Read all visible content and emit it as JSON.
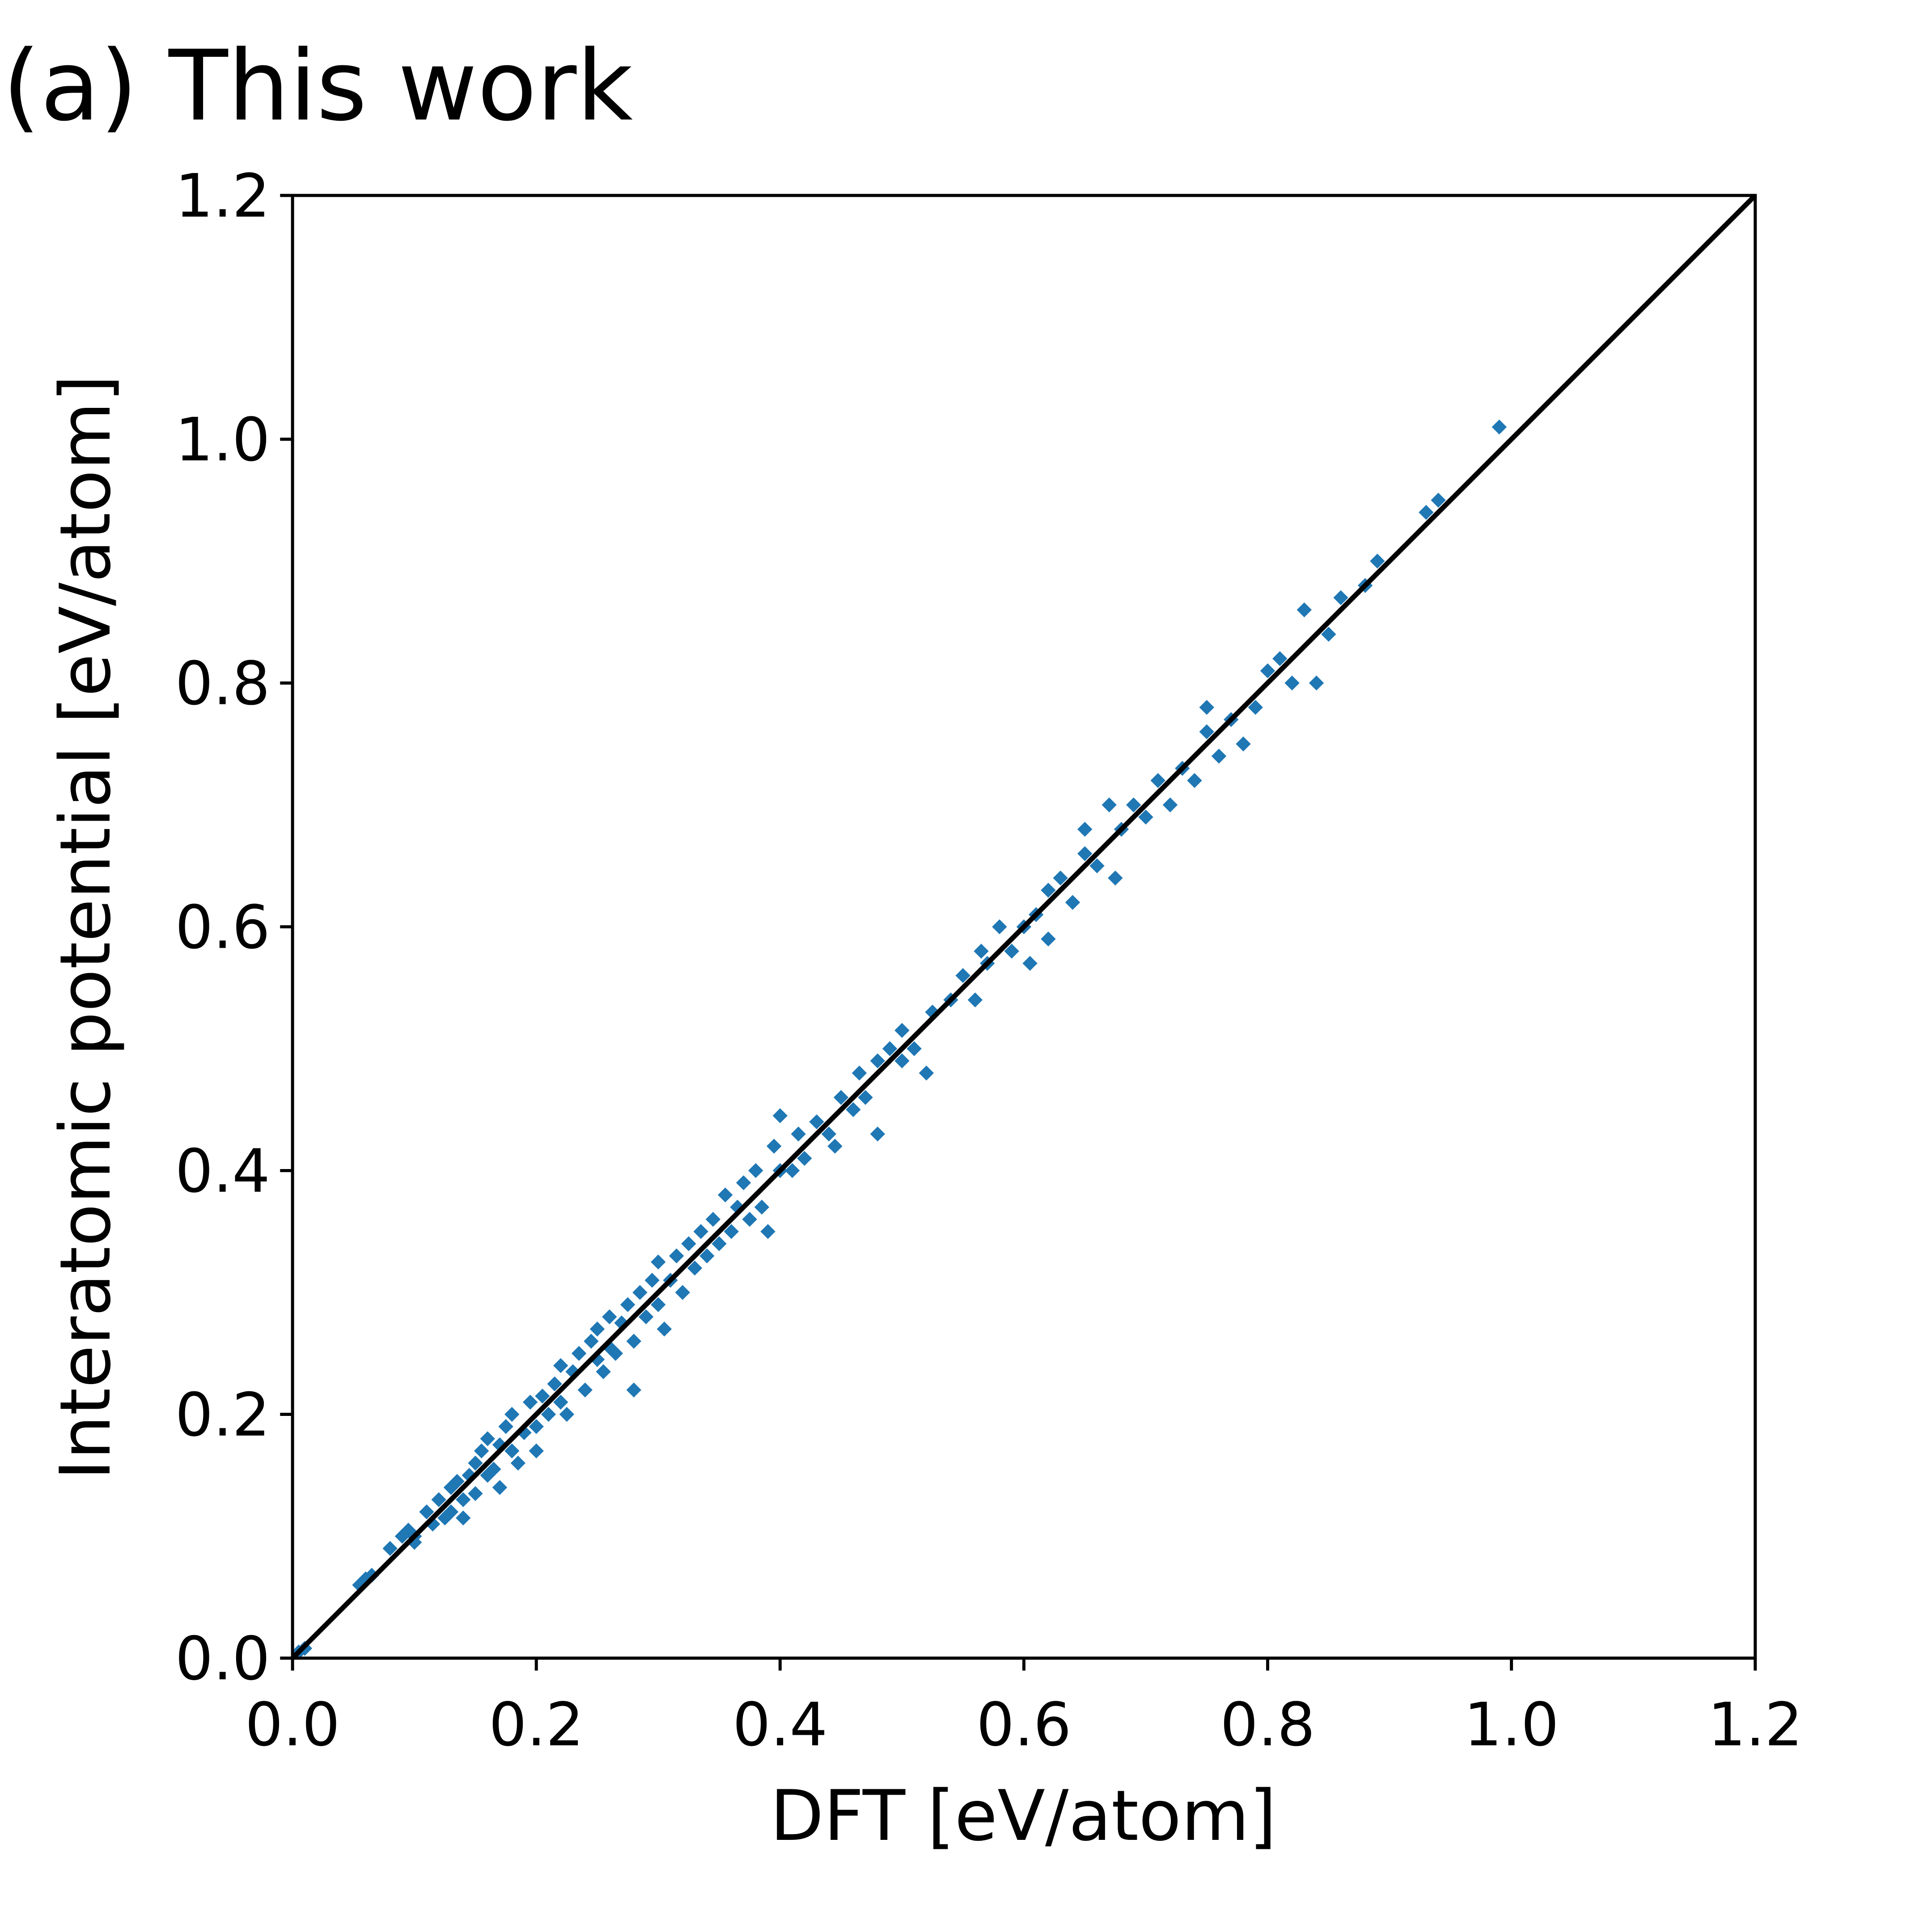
{
  "chart_data": {
    "type": "scatter",
    "title": "(a) This work",
    "x_label": "DFT [eV/atom]",
    "y_label": "Interatomic potential [eV/atom]",
    "xlim": [
      0,
      1.2
    ],
    "ylim": [
      0,
      1.2
    ],
    "xticks": [
      {
        "value": 0,
        "label": "0.0"
      },
      0.2,
      0.4,
      0.6,
      0.8,
      {
        "value": 1,
        "label": "1.0"
      },
      1.2
    ],
    "yticks": [
      {
        "value": 0,
        "label": "0.0"
      },
      0.2,
      0.4,
      0.6,
      0.8,
      {
        "value": 1,
        "label": "1.0"
      },
      1.2
    ],
    "grid": false,
    "marker": "diamond",
    "color": "#1f77b4",
    "x": [
      0.005,
      0.01,
      0.055,
      0.06,
      0.065,
      0.08,
      0.09,
      0.095,
      0.1,
      0.1,
      0.11,
      0.115,
      0.12,
      0.125,
      0.13,
      0.13,
      0.135,
      0.14,
      0.14,
      0.145,
      0.15,
      0.15,
      0.155,
      0.16,
      0.16,
      0.165,
      0.17,
      0.17,
      0.175,
      0.18,
      0.18,
      0.185,
      0.19,
      0.195,
      0.2,
      0.2,
      0.205,
      0.21,
      0.215,
      0.22,
      0.22,
      0.225,
      0.23,
      0.235,
      0.24,
      0.245,
      0.25,
      0.25,
      0.255,
      0.26,
      0.26,
      0.265,
      0.27,
      0.275,
      0.28,
      0.28,
      0.285,
      0.29,
      0.295,
      0.3,
      0.3,
      0.305,
      0.31,
      0.315,
      0.32,
      0.325,
      0.33,
      0.335,
      0.34,
      0.345,
      0.35,
      0.355,
      0.36,
      0.365,
      0.37,
      0.375,
      0.38,
      0.385,
      0.39,
      0.395,
      0.4,
      0.4,
      0.41,
      0.415,
      0.42,
      0.43,
      0.44,
      0.445,
      0.45,
      0.46,
      0.465,
      0.47,
      0.48,
      0.48,
      0.49,
      0.5,
      0.5,
      0.51,
      0.52,
      0.525,
      0.54,
      0.55,
      0.56,
      0.565,
      0.57,
      0.58,
      0.59,
      0.6,
      0.605,
      0.61,
      0.62,
      0.62,
      0.63,
      0.64,
      0.65,
      0.65,
      0.66,
      0.67,
      0.675,
      0.68,
      0.69,
      0.7,
      0.71,
      0.72,
      0.73,
      0.74,
      0.75,
      0.75,
      0.76,
      0.77,
      0.78,
      0.79,
      0.8,
      0.81,
      0.82,
      0.83,
      0.84,
      0.85,
      0.86,
      0.88,
      0.89,
      0.93,
      0.94,
      0.99
    ],
    "y": [
      0.005,
      0.008,
      0.06,
      0.065,
      0.068,
      0.09,
      0.1,
      0.105,
      0.1,
      0.095,
      0.12,
      0.11,
      0.13,
      0.115,
      0.12,
      0.14,
      0.145,
      0.13,
      0.115,
      0.15,
      0.16,
      0.135,
      0.17,
      0.15,
      0.18,
      0.155,
      0.175,
      0.14,
      0.19,
      0.17,
      0.2,
      0.16,
      0.185,
      0.21,
      0.19,
      0.17,
      0.215,
      0.2,
      0.225,
      0.21,
      0.24,
      0.2,
      0.235,
      0.25,
      0.22,
      0.26,
      0.245,
      0.27,
      0.235,
      0.255,
      0.28,
      0.25,
      0.275,
      0.29,
      0.26,
      0.22,
      0.3,
      0.28,
      0.31,
      0.29,
      0.325,
      0.27,
      0.31,
      0.33,
      0.3,
      0.34,
      0.32,
      0.35,
      0.33,
      0.36,
      0.34,
      0.38,
      0.35,
      0.37,
      0.39,
      0.36,
      0.4,
      0.37,
      0.35,
      0.42,
      0.4,
      0.445,
      0.4,
      0.43,
      0.41,
      0.44,
      0.43,
      0.42,
      0.46,
      0.45,
      0.48,
      0.46,
      0.43,
      0.49,
      0.5,
      0.49,
      0.515,
      0.5,
      0.48,
      0.53,
      0.54,
      0.56,
      0.54,
      0.58,
      0.57,
      0.6,
      0.58,
      0.6,
      0.57,
      0.61,
      0.59,
      0.63,
      0.64,
      0.62,
      0.66,
      0.68,
      0.65,
      0.7,
      0.64,
      0.68,
      0.7,
      0.69,
      0.72,
      0.7,
      0.73,
      0.72,
      0.76,
      0.78,
      0.74,
      0.77,
      0.75,
      0.78,
      0.81,
      0.82,
      0.8,
      0.86,
      0.8,
      0.84,
      0.87,
      0.88,
      0.9,
      0.94,
      0.95,
      1.01
    ],
    "identity_line": {
      "x": [
        0,
        1.2
      ],
      "y": [
        0,
        1.2
      ],
      "color": "#000000"
    }
  }
}
